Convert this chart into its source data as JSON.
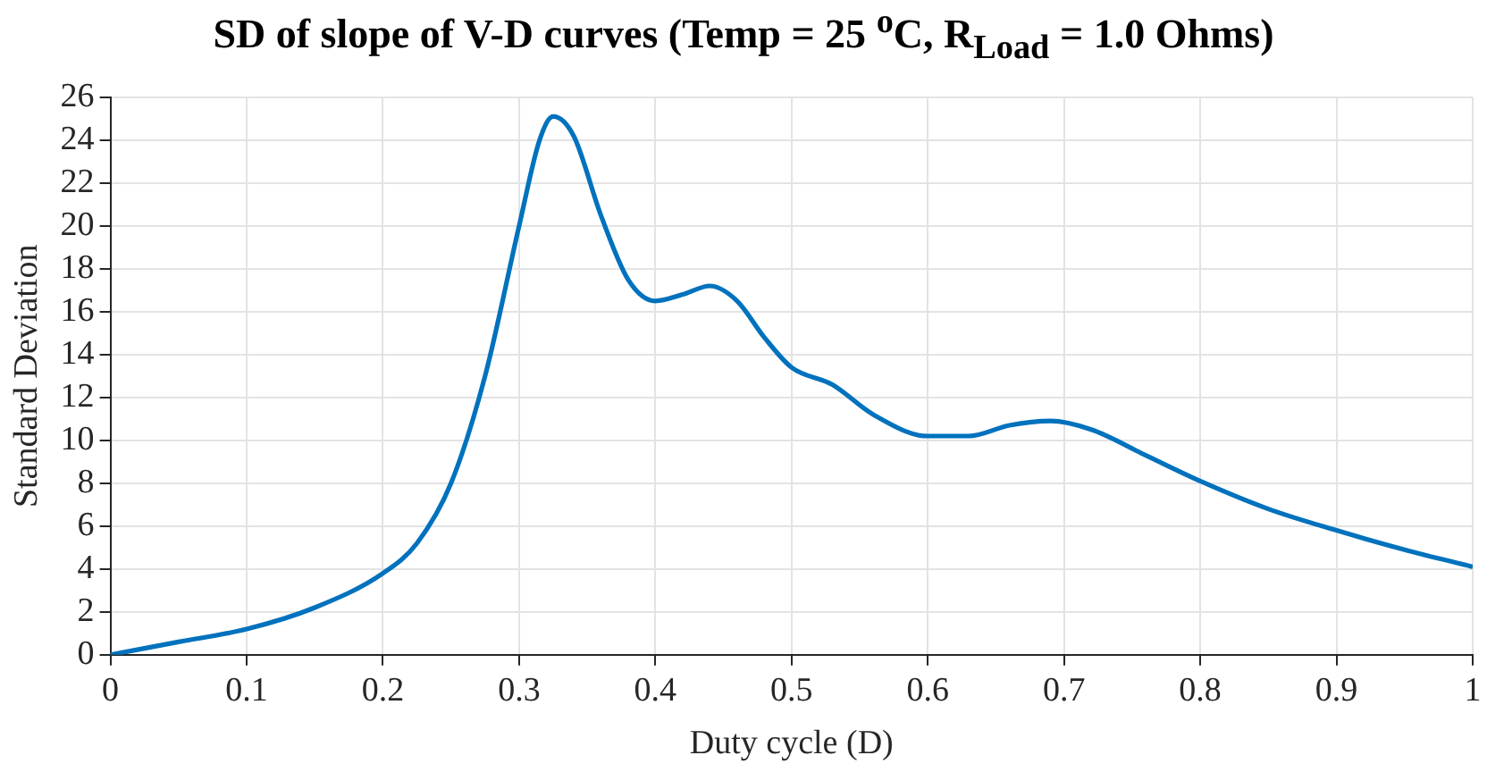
{
  "chart_data": {
    "type": "line",
    "title": "SD of slope of V-D curves (Temp = 25 $^{o}$C, R$_{Load}$ = 1.0 Ohms)",
    "xlabel": "Duty cycle (D)",
    "ylabel": "Standard Deviation",
    "x": [
      0,
      0.05,
      0.1,
      0.15,
      0.2,
      0.225,
      0.25,
      0.275,
      0.3,
      0.315,
      0.325,
      0.34,
      0.36,
      0.38,
      0.4,
      0.42,
      0.44,
      0.46,
      0.48,
      0.5,
      0.53,
      0.56,
      0.6,
      0.63,
      0.66,
      0.69,
      0.72,
      0.76,
      0.8,
      0.85,
      0.9,
      0.95,
      1.0
    ],
    "series": [
      {
        "color": "#0072bd",
        "values": [
          0,
          0.6,
          1.2,
          2.2,
          3.8,
          5.2,
          8,
          13,
          20,
          24,
          25.1,
          24.2,
          20.5,
          17.5,
          16.5,
          16.8,
          17.2,
          16.5,
          14.8,
          13.4,
          12.6,
          11.2,
          10.2,
          10.2,
          10.7,
          10.9,
          10.5,
          9.3,
          8.1,
          6.8,
          5.8,
          4.9,
          4.1
        ]
      }
    ],
    "xlim": [
      0,
      1
    ],
    "xticks": [
      0,
      0.1,
      0.2,
      0.3,
      0.4,
      0.5,
      0.6,
      0.7,
      0.8,
      0.9,
      1
    ],
    "ylim": [
      0,
      26
    ],
    "yticks": [
      0,
      2,
      4,
      6,
      8,
      10,
      12,
      14,
      16,
      18,
      20,
      22,
      24,
      26
    ],
    "grid": true,
    "legend": false,
    "marker": "none",
    "line_style": "solid"
  }
}
